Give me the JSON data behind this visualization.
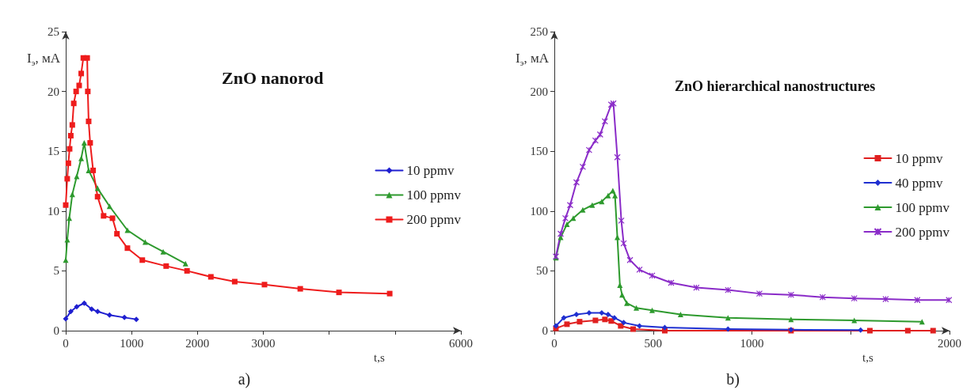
{
  "chart_data": [
    {
      "type": "line",
      "title": "ZnO nanorod",
      "ylabel": "I$_{э}$, мА",
      "xlabel": "t,s",
      "annotations": [
        "a)"
      ],
      "xlim": [
        0,
        6000
      ],
      "xticks": [
        0,
        1000,
        2000,
        3000,
        {
          "value": 4000,
          "label": null
        },
        {
          "value": 5000,
          "label": null
        },
        6000
      ],
      "ylim": [
        0,
        25
      ],
      "yticks": [
        0,
        5,
        10,
        15,
        20,
        25
      ],
      "grid": false,
      "legend": "right",
      "series": [
        {
          "name": "10 ppmv",
          "color": "#1f1fd0",
          "marker": "diamond",
          "x": [
            0,
            77,
            167,
            281,
            394,
            484,
            665,
            891,
            1072
          ],
          "values": [
            1.0,
            1.6,
            2.0,
            2.3,
            1.8,
            1.6,
            1.3,
            1.1,
            0.95
          ]
        },
        {
          "name": "100 ppmv",
          "color": "#2e9a2e",
          "marker": "triangle",
          "x": [
            0,
            23,
            54,
            100,
            167,
            235,
            281,
            348,
            484,
            665,
            937,
            1208,
            1480,
            1819
          ],
          "values": [
            5.9,
            7.6,
            9.4,
            11.4,
            12.9,
            14.4,
            15.7,
            13.4,
            11.9,
            10.4,
            8.4,
            7.4,
            6.6,
            5.6
          ]
        },
        {
          "name": "200 ppmv",
          "color": "#ee1c1c",
          "marker": "square",
          "x": [
            0,
            23,
            40,
            59,
            77,
            100,
            122,
            158,
            204,
            235,
            267,
            326,
            335,
            348,
            371,
            416,
            484,
            575,
            710,
            778,
            937,
            1163,
            1525,
            1842,
            2204,
            2566,
            3018,
            3561,
            4149,
            4919
          ],
          "values": [
            10.5,
            12.7,
            14,
            15.2,
            16.3,
            17.2,
            19,
            20,
            20.5,
            21.5,
            22.8,
            22.8,
            20,
            17.5,
            15.7,
            13.4,
            11.2,
            9.6,
            9.4,
            8.1,
            6.9,
            5.9,
            5.4,
            5.0,
            4.5,
            4.1,
            3.85,
            3.5,
            3.2,
            3.1
          ]
        }
      ]
    },
    {
      "type": "line",
      "title": "ZnO hierarchical nanostructures",
      "ylabel": "I$_{э}$, мА",
      "xlabel": "t,s",
      "annotations": [
        "b)"
      ],
      "xlim": [
        0,
        2000
      ],
      "xticks": [
        0,
        500,
        1000,
        {
          "value": 1500,
          "label": null
        },
        2000
      ],
      "ylim": [
        0,
        250
      ],
      "yticks": [
        0,
        50,
        100,
        150,
        200,
        250
      ],
      "grid": false,
      "legend": "right",
      "series": [
        {
          "name": "10 ppmv",
          "color": "#e02020",
          "marker": "square",
          "x": [
            8,
            64,
            128,
            208,
            256,
            288,
            336,
            399,
            559,
            1198,
            1597,
            1789,
            1917
          ],
          "values": [
            1.9,
            5.4,
            7.5,
            8.6,
            9.4,
            8.1,
            4,
            1.3,
            0,
            0,
            0,
            0,
            0
          ]
        },
        {
          "name": "40 ppmv",
          "color": "#1f2fd0",
          "marker": "diamond",
          "x": [
            8,
            48,
            112,
            176,
            240,
            272,
            304,
            351,
            431,
            559,
            879,
            1198,
            1550
          ],
          "values": [
            4,
            10.8,
            13.5,
            14.8,
            14.8,
            13.5,
            10.8,
            6.7,
            4,
            2.7,
            1.3,
            0.8,
            0.5
          ]
        },
        {
          "name": "100 ppmv",
          "color": "#2e9a2e",
          "marker": "triangle",
          "x": [
            8,
            32,
            64,
            96,
            144,
            192,
            240,
            272,
            296,
            307,
            319,
            332,
            343,
            367,
            415,
            495,
            639,
            879,
            1198,
            1518,
            1861
          ],
          "values": [
            61,
            78,
            89,
            94,
            101,
            105,
            108,
            113,
            117,
            113,
            78,
            38,
            30,
            23,
            19,
            17,
            13.5,
            10.8,
            9.4,
            8.6,
            7.5
          ]
        },
        {
          "name": "200 ppmv",
          "color": "#8a2bc8",
          "marker": "cross",
          "x": [
            8,
            32,
            56,
            80,
            112,
            144,
            176,
            208,
            232,
            256,
            288,
            299,
            319,
            339,
            351,
            383,
            431,
            495,
            591,
            719,
            879,
            1038,
            1198,
            1358,
            1518,
            1677,
            1837,
            1997
          ],
          "values": [
            62,
            81,
            94,
            105,
            124,
            137,
            151,
            159,
            164,
            175,
            189,
            190,
            145,
            92,
            73,
            59,
            51,
            46,
            40,
            36,
            34,
            31,
            30,
            28,
            27,
            26.4,
            25.6,
            25.6
          ]
        }
      ]
    }
  ]
}
